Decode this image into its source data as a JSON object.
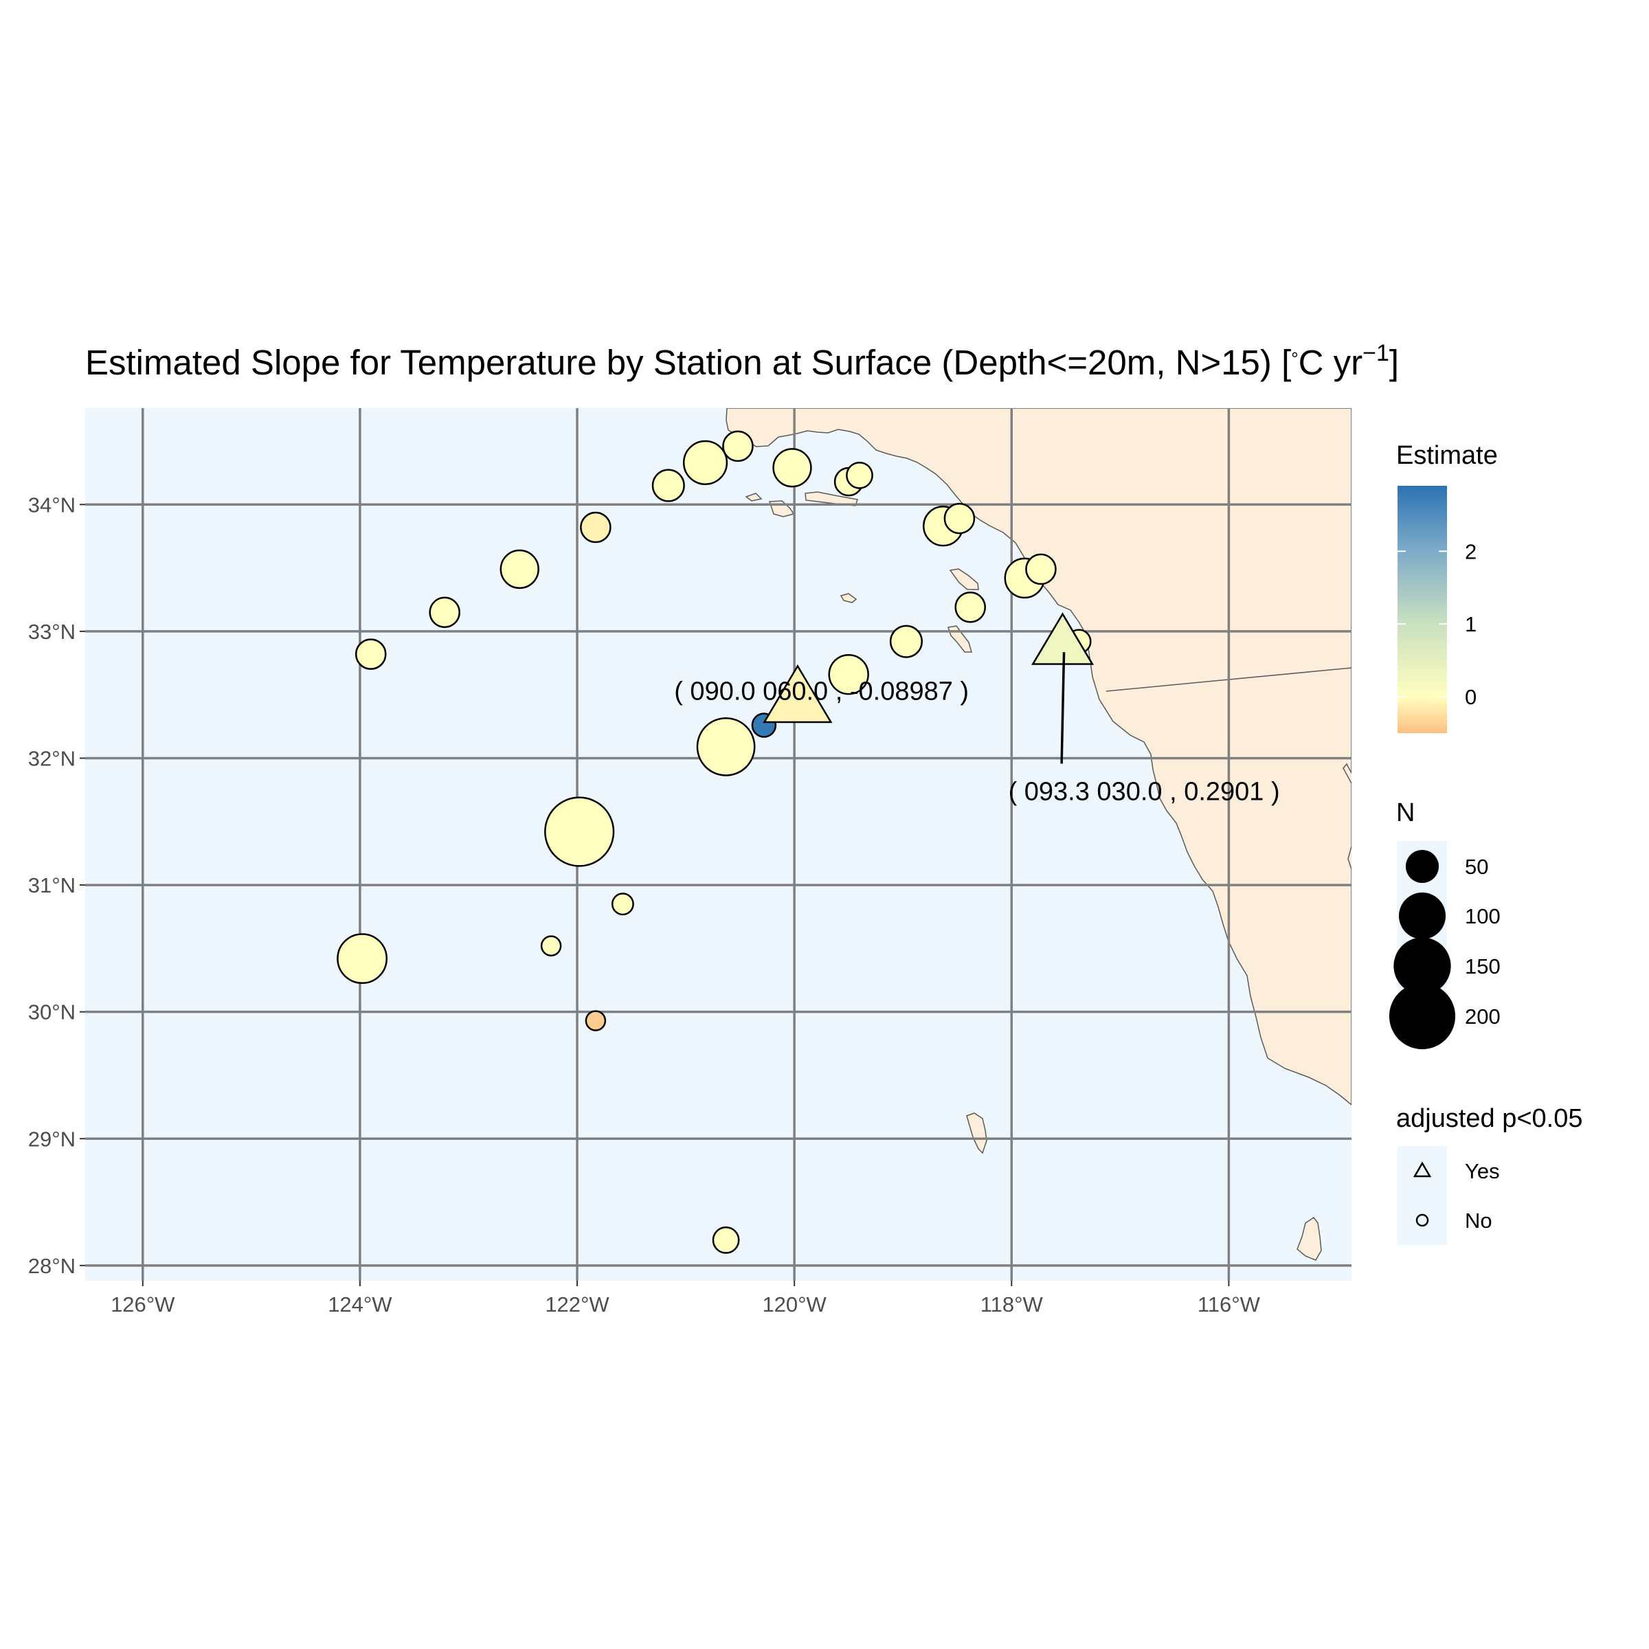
{
  "title": {
    "main": "Estimated Slope for Temperature by Station at Surface (Depth<=20m, N>15) [",
    "degree": "°",
    "unit_c": "C yr",
    "exponent": "−1",
    "close": "]"
  },
  "colors": {
    "ocean": "#eff7fe",
    "land": "#fdeedb",
    "grid": "#808080",
    "point_stroke": "#000000",
    "scale_low": "#fdbf81",
    "scale_mid": "#ffffc0",
    "scale_high": "#2c73b3"
  },
  "axes": {
    "x_ticks": [
      {
        "value": -126,
        "label": "126°W"
      },
      {
        "value": -124,
        "label": "124°W"
      },
      {
        "value": -122,
        "label": "122°W"
      },
      {
        "value": -120,
        "label": "120°W"
      },
      {
        "value": -118,
        "label": "118°W"
      },
      {
        "value": -116,
        "label": "116°W"
      }
    ],
    "y_ticks": [
      {
        "value": 34,
        "label": "34°N"
      },
      {
        "value": 33,
        "label": "33°N"
      },
      {
        "value": 32,
        "label": "32°N"
      },
      {
        "value": 31,
        "label": "31°N"
      },
      {
        "value": 30,
        "label": "30°N"
      },
      {
        "value": 29,
        "label": "29°N"
      },
      {
        "value": 28,
        "label": "28°N"
      }
    ],
    "xlim": [
      -126.53,
      -114.87
    ],
    "ylim": [
      27.88,
      34.76
    ],
    "grid": true
  },
  "chart_data": {
    "type": "scatter",
    "stations": [
      {
        "lon": -120.52,
        "lat": 34.46,
        "estimate": 0.0,
        "n": 40,
        "significant": false
      },
      {
        "lon": -120.82,
        "lat": 34.33,
        "estimate": 0.0,
        "n": 85,
        "significant": false
      },
      {
        "lon": -121.16,
        "lat": 34.15,
        "estimate": 0.0,
        "n": 45,
        "significant": false
      },
      {
        "lon": -120.02,
        "lat": 34.29,
        "estimate": 0.0,
        "n": 65,
        "significant": false
      },
      {
        "lon": -119.5,
        "lat": 34.18,
        "estimate": 0.0,
        "n": 35,
        "significant": false
      },
      {
        "lon": -119.4,
        "lat": 34.23,
        "estimate": 0.0,
        "n": 30,
        "significant": false
      },
      {
        "lon": -121.83,
        "lat": 33.82,
        "estimate": -0.1,
        "n": 40,
        "significant": false
      },
      {
        "lon": -118.63,
        "lat": 33.83,
        "estimate": 0.0,
        "n": 70,
        "significant": false
      },
      {
        "lon": -118.48,
        "lat": 33.89,
        "estimate": 0.0,
        "n": 40,
        "significant": false
      },
      {
        "lon": -122.53,
        "lat": 33.49,
        "estimate": 0.0,
        "n": 65,
        "significant": false
      },
      {
        "lon": -117.88,
        "lat": 33.42,
        "estimate": 0.0,
        "n": 70,
        "significant": false
      },
      {
        "lon": -117.73,
        "lat": 33.49,
        "estimate": 0.0,
        "n": 40,
        "significant": false
      },
      {
        "lon": -123.22,
        "lat": 33.15,
        "estimate": 0.0,
        "n": 40,
        "significant": false
      },
      {
        "lon": -118.38,
        "lat": 33.19,
        "estimate": 0.0,
        "n": 40,
        "significant": false
      },
      {
        "lon": -123.9,
        "lat": 32.82,
        "estimate": 0.0,
        "n": 40,
        "significant": false
      },
      {
        "lon": -118.97,
        "lat": 32.92,
        "estimate": 0.0,
        "n": 45,
        "significant": false
      },
      {
        "lon": -117.38,
        "lat": 32.92,
        "estimate": 0.0,
        "n": 25,
        "significant": false
      },
      {
        "lon": -119.5,
        "lat": 32.66,
        "estimate": 0.0,
        "n": 70,
        "significant": false
      },
      {
        "lon": -120.28,
        "lat": 32.26,
        "estimate": 2.8,
        "n": 25,
        "significant": false
      },
      {
        "lon": -120.63,
        "lat": 32.09,
        "estimate": 0.0,
        "n": 150,
        "significant": false
      },
      {
        "lon": -121.98,
        "lat": 31.42,
        "estimate": 0.0,
        "n": 215,
        "significant": false
      },
      {
        "lon": -121.58,
        "lat": 30.85,
        "estimate": 0.0,
        "n": 20,
        "significant": false
      },
      {
        "lon": -123.98,
        "lat": 30.42,
        "estimate": 0.0,
        "n": 110,
        "significant": false
      },
      {
        "lon": -122.24,
        "lat": 30.52,
        "estimate": 0.0,
        "n": 17,
        "significant": false
      },
      {
        "lon": -121.83,
        "lat": 29.93,
        "estimate": -0.4,
        "n": 17,
        "significant": false
      },
      {
        "lon": -120.63,
        "lat": 28.2,
        "estimate": 0.0,
        "n": 30,
        "significant": false
      },
      {
        "lon": -119.97,
        "lat": 32.45,
        "estimate": -0.08987,
        "n": 100,
        "significant": true
      },
      {
        "lon": -117.53,
        "lat": 32.89,
        "estimate": 0.2901,
        "n": 80,
        "significant": true
      }
    ],
    "annotations": [
      {
        "text": "( 090.0 060.0 , -0.08987 )",
        "lon": -119.75,
        "lat": 32.53
      },
      {
        "text": "( 093.3 030.0 , 0.2901 )",
        "lon": -116.78,
        "lat": 31.74,
        "leader_to": {
          "lon": -117.53,
          "lat": 32.89
        }
      }
    ]
  },
  "legend": {
    "estimate": {
      "title": "Estimate",
      "range": [
        -0.5,
        2.9
      ],
      "ticks": [
        {
          "value": 2,
          "label": "2"
        },
        {
          "value": 1,
          "label": "1"
        },
        {
          "value": 0,
          "label": "0"
        }
      ]
    },
    "n": {
      "title": "N",
      "items": [
        {
          "value": 50,
          "label": "50"
        },
        {
          "value": 100,
          "label": "100"
        },
        {
          "value": 150,
          "label": "150"
        },
        {
          "value": 200,
          "label": "200"
        }
      ]
    },
    "adjusted": {
      "title": "adjusted p<0.05",
      "items": [
        {
          "shape": "triangle",
          "label": "Yes"
        },
        {
          "shape": "circle",
          "label": "No"
        }
      ]
    }
  }
}
